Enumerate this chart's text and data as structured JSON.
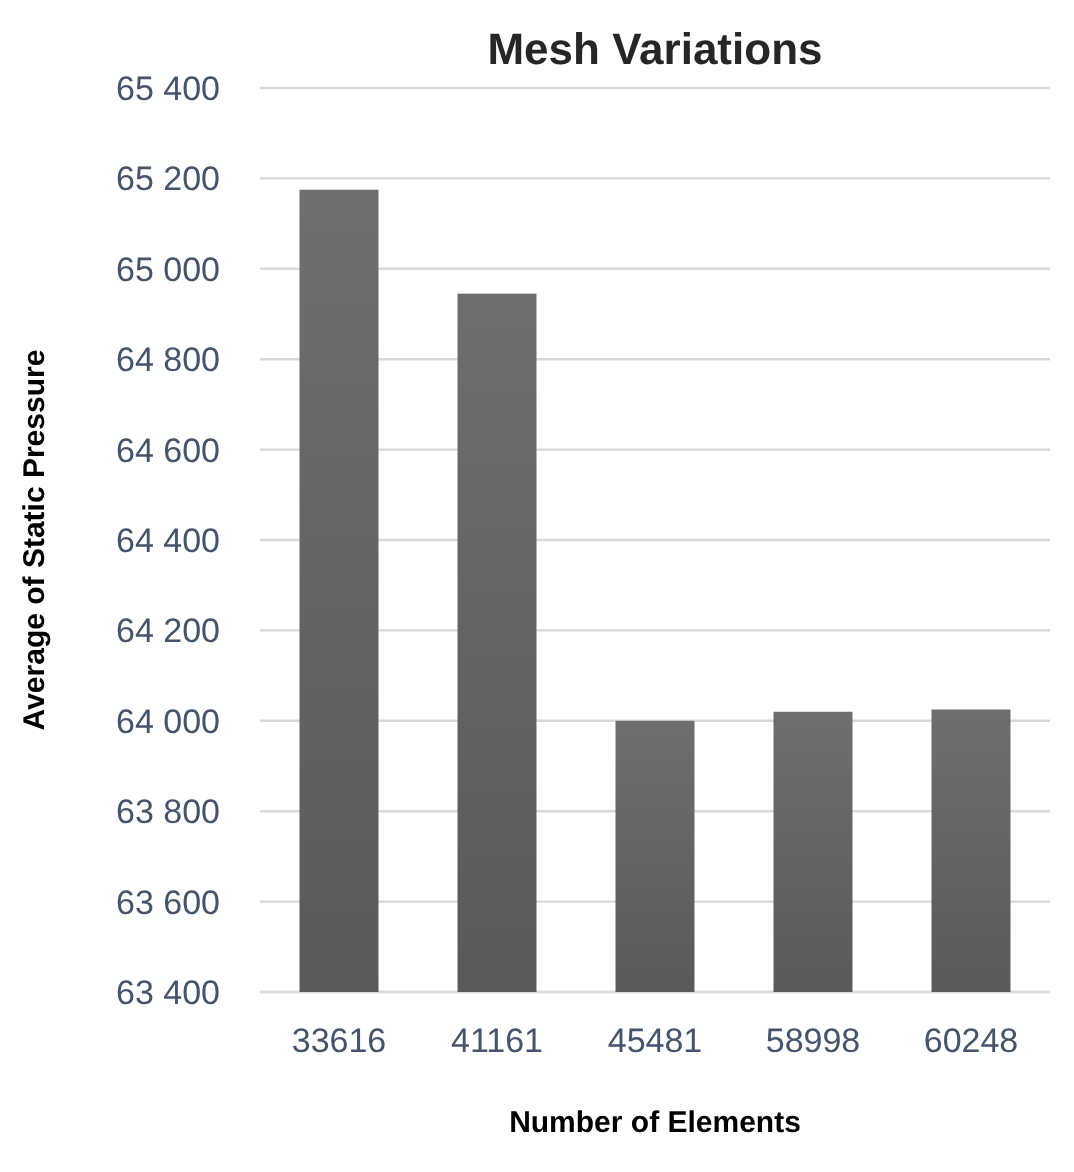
{
  "chart_data": {
    "type": "bar",
    "title": "Mesh Variations",
    "xlabel": "Number of Elements",
    "ylabel": "Average of Static Pressure",
    "categories": [
      "33616",
      "41161",
      "45481",
      "58998",
      "60248"
    ],
    "values": [
      65175,
      64945,
      64000,
      64020,
      64025
    ],
    "color": "#636363",
    "ylim": [
      63400,
      65400
    ],
    "yticks": [
      {
        "value": 63400,
        "label": "63 400"
      },
      {
        "value": 63600,
        "label": "63 600"
      },
      {
        "value": 63800,
        "label": "63 800"
      },
      {
        "value": 64000,
        "label": "64 000"
      },
      {
        "value": 64200,
        "label": "64 200"
      },
      {
        "value": 64400,
        "label": "64 400"
      },
      {
        "value": 64600,
        "label": "64 600"
      },
      {
        "value": 64800,
        "label": "64 800"
      },
      {
        "value": 65000,
        "label": "65 000"
      },
      {
        "value": 65200,
        "label": "65 200"
      },
      {
        "value": 65400,
        "label": "65 400"
      }
    ],
    "grid": "y"
  }
}
